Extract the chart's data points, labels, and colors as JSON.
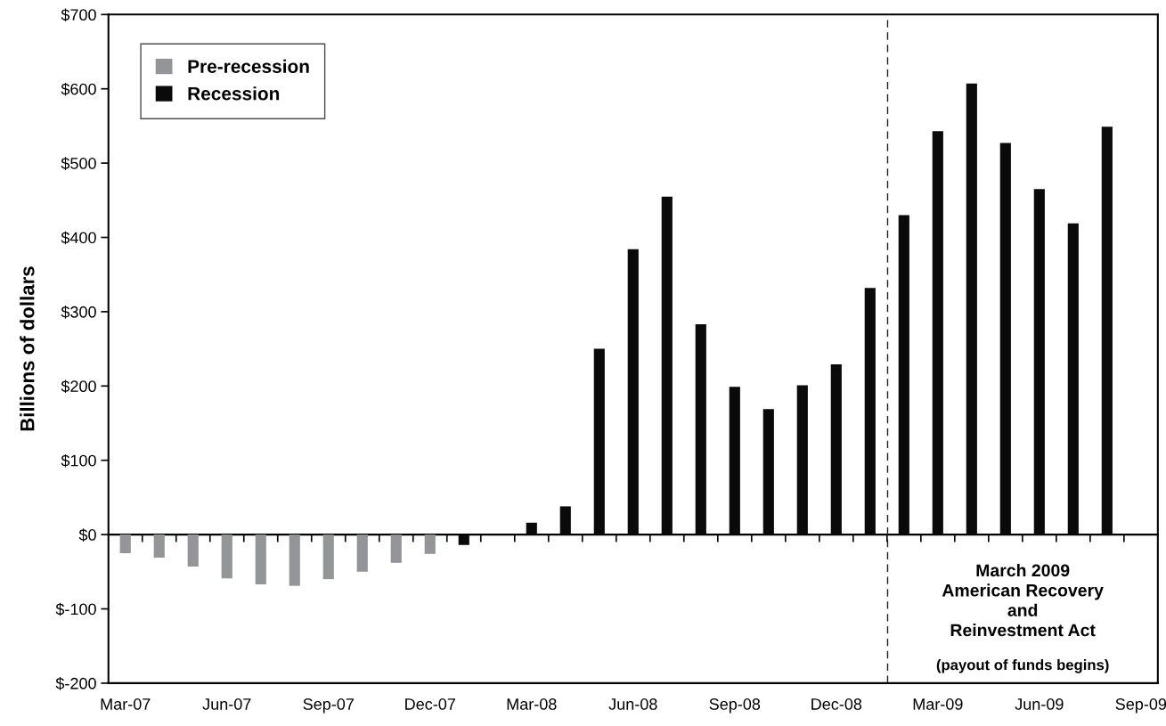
{
  "chart_data": {
    "type": "bar",
    "ylabel": "Billions of dollars",
    "categories": [
      "Mar-07",
      null,
      null,
      "Jun-07",
      null,
      null,
      "Sep-07",
      null,
      null,
      "Dec-07",
      null,
      null,
      "Mar-08",
      null,
      null,
      "Jun-08",
      null,
      null,
      "Sep-08",
      null,
      null,
      "Dec-08",
      null,
      null,
      "Mar-09",
      null,
      null,
      "Jun-09",
      null,
      null,
      "Sep-09"
    ],
    "series": [
      {
        "name": "Pre-recession",
        "color": "#939598",
        "values": [
          -25,
          -31,
          -43,
          -59,
          -67,
          -69,
          -60,
          -50,
          -38,
          -26,
          null,
          null,
          null,
          null,
          null,
          null,
          null,
          null,
          null,
          null,
          null,
          null,
          null,
          null,
          null,
          null,
          null,
          null,
          null,
          null,
          null
        ]
      },
      {
        "name": "Recession",
        "color": "#0a0a0a",
        "values": [
          null,
          null,
          null,
          null,
          null,
          null,
          null,
          null,
          null,
          null,
          -14,
          null,
          16,
          38,
          250,
          384,
          455,
          283,
          199,
          169,
          201,
          229,
          332,
          430,
          543,
          607,
          527,
          465,
          419,
          549,
          null
        ]
      }
    ],
    "ylim": [
      -200,
      700
    ],
    "yticks": [
      {
        "value": -200,
        "label": "$-200"
      },
      {
        "value": -100,
        "label": "$-100"
      },
      {
        "value": 0,
        "label": "$0"
      },
      {
        "value": 100,
        "label": "$100"
      },
      {
        "value": 200,
        "label": "$200"
      },
      {
        "value": 300,
        "label": "$300"
      },
      {
        "value": 400,
        "label": "$400"
      },
      {
        "value": 500,
        "label": "$500"
      },
      {
        "value": 600,
        "label": "$600"
      },
      {
        "value": 700,
        "label": "$700"
      }
    ],
    "annotations": [
      "March 2009\nAmerican Recovery\nand\nReinvestment Act",
      "(payout of funds begins)"
    ],
    "grid": false,
    "legend": "top left"
  }
}
